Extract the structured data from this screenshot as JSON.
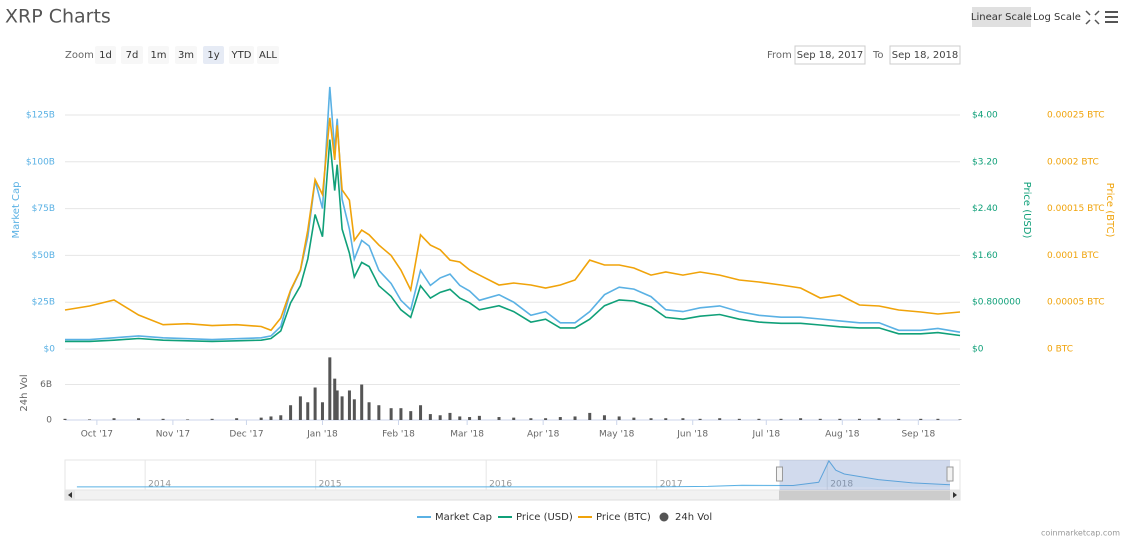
{
  "title": "XRP Charts",
  "scale_buttons": [
    "Linear Scale",
    "Log Scale"
  ],
  "zoom": {
    "label": "Zoom",
    "buttons": [
      "1d",
      "7d",
      "1m",
      "3m",
      "1y",
      "YTD",
      "ALL"
    ],
    "active": 4
  },
  "range": {
    "from_label": "From",
    "from": "Sep 18, 2017",
    "to_label": "To",
    "to": "Sep 18, 2018"
  },
  "chart_data": [
    {
      "type": "line",
      "log_scale": false,
      "grid": true,
      "legend": "bottom",
      "xlim": [
        0,
        365
      ],
      "xticks": [
        {
          "value": 13,
          "label": "Oct '17"
        },
        {
          "value": 44,
          "label": "Nov '17"
        },
        {
          "value": 74,
          "label": "Dec '17"
        },
        {
          "value": 105,
          "label": "Jan '18"
        },
        {
          "value": 136,
          "label": "Feb '18"
        },
        {
          "value": 164,
          "label": "Mar '18"
        },
        {
          "value": 195,
          "label": "Apr '18"
        },
        {
          "value": 225,
          "label": "May '18"
        },
        {
          "value": 256,
          "label": "Jun '18"
        },
        {
          "value": 286,
          "label": "Jul '18"
        },
        {
          "value": 317,
          "label": "Aug '18"
        },
        {
          "value": 348,
          "label": "Sep '18"
        }
      ],
      "y_label": "Market Cap",
      "ylim": [
        0,
        125
      ],
      "yticks": [
        {
          "value": 0,
          "label": "$0"
        },
        {
          "value": 25,
          "label": "$25B"
        },
        {
          "value": 50,
          "label": "$50B"
        },
        {
          "value": 75,
          "label": "$75B"
        },
        {
          "value": 100,
          "label": "$100B"
        },
        {
          "value": 125,
          "label": "$125B"
        }
      ],
      "y2_label": "Price (USD)",
      "y2lim": [
        0,
        4
      ],
      "y2ticks": [
        {
          "value": 0,
          "label": "$0"
        },
        {
          "value": 0.8,
          "label": "$0.800000"
        },
        {
          "value": 1.6,
          "label": "$1.60"
        },
        {
          "value": 2.4,
          "label": "$2.40"
        },
        {
          "value": 3.2,
          "label": "$3.20"
        },
        {
          "value": 4,
          "label": "$4.00"
        }
      ],
      "y3_label": "Price (BTC)",
      "y3lim": [
        0,
        0.00025
      ],
      "y3ticks": [
        {
          "value": 0,
          "label": "0 BTC"
        },
        {
          "value": 5e-05,
          "label": "0.00005 BTC"
        },
        {
          "value": 0.0001,
          "label": "0.0001 BTC"
        },
        {
          "value": 0.00015,
          "label": "0.00015 BTC"
        },
        {
          "value": 0.0002,
          "label": "0.0002 BTC"
        },
        {
          "value": 0.00025,
          "label": "0.00025 BTC"
        }
      ],
      "y4_label": "24h Vol",
      "y4lim": [
        0,
        11
      ],
      "y4ticks": [
        0,
        {
          "value": 6,
          "label": "6B"
        }
      ],
      "x": [
        0,
        10,
        20,
        30,
        40,
        50,
        60,
        70,
        80,
        84,
        88,
        92,
        96,
        99,
        102,
        105,
        108,
        110,
        111,
        113,
        116,
        118,
        121,
        124,
        128,
        133,
        137,
        141,
        145,
        149,
        153,
        157,
        161,
        165,
        169,
        177,
        183,
        190,
        196,
        202,
        208,
        214,
        220,
        226,
        232,
        239,
        245,
        252,
        259,
        267,
        275,
        283,
        292,
        300,
        308,
        316,
        324,
        332,
        340,
        349,
        356,
        365
      ],
      "series": [
        {
          "name": "Market Cap",
          "color": "#5ab1e4",
          "axis": "y",
          "values": [
            5,
            5,
            6,
            7,
            6,
            5.5,
            5,
            5.5,
            6,
            7,
            12,
            31,
            42,
            60,
            90,
            75,
            140,
            106,
            123,
            80,
            64,
            48,
            58,
            55,
            42,
            35,
            26,
            21,
            42,
            34,
            38,
            40,
            34,
            31,
            26,
            29,
            25,
            18,
            20,
            14,
            14,
            20,
            29,
            33,
            32,
            28,
            21,
            20,
            22,
            23,
            20,
            18,
            17,
            17,
            16,
            15,
            14,
            14,
            10,
            10,
            11,
            9
          ]
        },
        {
          "name": "Price (USD)",
          "color": "#10a079",
          "axis": "y2",
          "values": [
            0.13,
            0.13,
            0.15,
            0.18,
            0.15,
            0.14,
            0.13,
            0.14,
            0.15,
            0.18,
            0.31,
            0.79,
            1.08,
            1.54,
            2.3,
            1.92,
            3.58,
            2.71,
            3.15,
            2.05,
            1.64,
            1.23,
            1.48,
            1.41,
            1.08,
            0.9,
            0.67,
            0.54,
            1.08,
            0.87,
            0.97,
            1.02,
            0.87,
            0.79,
            0.67,
            0.74,
            0.64,
            0.46,
            0.51,
            0.36,
            0.36,
            0.51,
            0.74,
            0.84,
            0.82,
            0.72,
            0.54,
            0.51,
            0.56,
            0.59,
            0.51,
            0.46,
            0.44,
            0.44,
            0.41,
            0.38,
            0.36,
            0.36,
            0.26,
            0.26,
            0.28,
            0.23
          ]
        },
        {
          "name": "Price (BTC)",
          "color": "#f0a30a",
          "axis": "y3",
          "values": [
            4.17e-05,
            4.59e-05,
            5.24e-05,
            3.63e-05,
            2.6e-05,
            2.7e-05,
            2.5e-05,
            2.6e-05,
            2.4e-05,
            2e-05,
            3.31e-05,
            6.3e-05,
            8.44e-05,
            0.000127,
            0.000181,
            0.000165,
            0.000247,
            0.000202,
            0.000239,
            0.00017,
            0.000159,
            0.000116,
            0.000127,
            0.000122,
            0.000111,
            0.0001,
            8.44e-05,
            6.3e-05,
            0.000122,
            0.000111,
            0.000106,
            9.5e-05,
            9.3e-05,
            8.44e-05,
            7.9e-05,
            6.84e-05,
            7.05e-05,
            6.84e-05,
            6.52e-05,
            6.84e-05,
            7.37e-05,
            9.5e-05,
            8.97e-05,
            8.97e-05,
            8.65e-05,
            7.9e-05,
            8.23e-05,
            7.9e-05,
            8.23e-05,
            7.9e-05,
            7.37e-05,
            7.16e-05,
            6.84e-05,
            6.52e-05,
            5.45e-05,
            5.77e-05,
            4.7e-05,
            4.59e-05,
            4.17e-05,
            3.95e-05,
            3.74e-05,
            3.95e-05
          ]
        },
        {
          "name": "24h Vol",
          "color": "#555555",
          "axis": "y4",
          "type": "bar",
          "values": [
            0.2,
            0.1,
            0.3,
            0.3,
            0.2,
            0.1,
            0.2,
            0.3,
            0.4,
            0.6,
            0.8,
            2.5,
            4,
            3,
            5.5,
            3,
            10.6,
            7,
            5,
            4,
            5,
            3.5,
            6,
            3,
            2.5,
            2,
            2,
            1.5,
            2.5,
            1,
            0.8,
            1.2,
            0.6,
            0.5,
            0.7,
            0.5,
            0.4,
            0.3,
            0.3,
            0.5,
            0.6,
            1.2,
            0.8,
            0.6,
            0.4,
            0.3,
            0.3,
            0.3,
            0.2,
            0.3,
            0.2,
            0.2,
            0.2,
            0.3,
            0.2,
            0.2,
            0.2,
            0.3,
            0.2,
            0.2,
            0.2,
            0.1
          ]
        }
      ]
    },
    {
      "type": "area",
      "color": "#5ab1e4",
      "xlim": [
        2013.53,
        2018.72
      ],
      "ylim": [
        0,
        145
      ],
      "xticks": [
        2014,
        2015,
        2016,
        2017,
        2018
      ],
      "selection": [
        2017.72,
        2018.72
      ],
      "x": [
        2013.6,
        2014,
        2014.5,
        2015,
        2015.5,
        2016,
        2016.5,
        2017,
        2017.3,
        2017.5,
        2017.8,
        2017.95,
        2018.01,
        2018.05,
        2018.1,
        2018.3,
        2018.5,
        2018.72
      ],
      "values": [
        0.5,
        0.6,
        0.3,
        0.4,
        0.3,
        0.3,
        0.4,
        0.5,
        3,
        9,
        8,
        25,
        140,
        90,
        70,
        40,
        22,
        12
      ]
    }
  ],
  "credit": "coinmarketcap.com"
}
